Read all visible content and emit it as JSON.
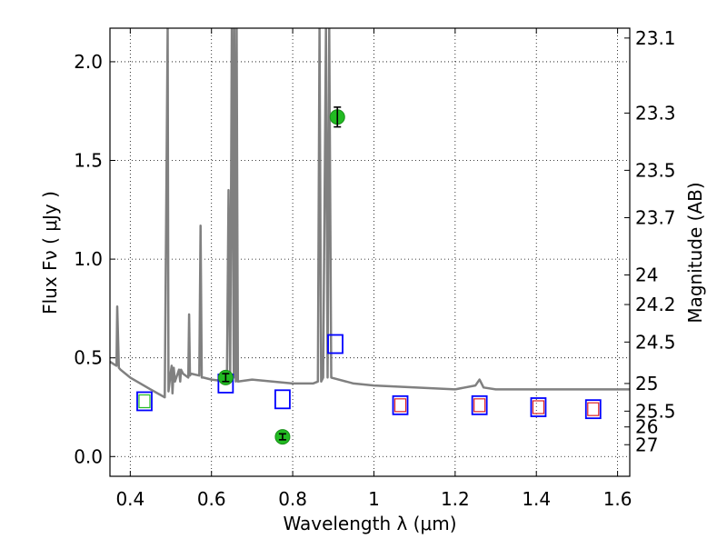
{
  "chart_data": {
    "type": "scatter",
    "title": "",
    "xlabel": "Wavelength  λ (μm)",
    "ylabel": "Flux  Fν  ( μJy )",
    "y2label": "Magnitude (AB)",
    "xlim": [
      0.35,
      1.63
    ],
    "ylim": [
      -0.1,
      2.17
    ],
    "grid": true,
    "grid_style": "dotted",
    "x_ticks": [
      0.4,
      0.6,
      0.8,
      1.0,
      1.2,
      1.4,
      1.6
    ],
    "x_tick_labels": [
      "0.4",
      "0.6",
      "0.8",
      "1",
      "1.2",
      "1.4",
      "1.6"
    ],
    "y_ticks": [
      0.0,
      0.5,
      1.0,
      1.5,
      2.0
    ],
    "y_tick_labels": [
      "0.0",
      "0.5",
      "1.0",
      "1.5",
      "2.0"
    ],
    "y2_ticks": [
      {
        "label": "23.1",
        "flux": 2.12
      },
      {
        "label": "23.3",
        "flux": 1.74
      },
      {
        "label": "23.5",
        "flux": 1.45
      },
      {
        "label": "23.7",
        "flux": 1.21
      },
      {
        "label": "24",
        "flux": 0.92
      },
      {
        "label": "24.2",
        "flux": 0.77
      },
      {
        "label": "24.5",
        "flux": 0.58
      },
      {
        "label": "25",
        "flux": 0.37
      },
      {
        "label": "25.5",
        "flux": 0.23
      },
      {
        "label": "26",
        "flux": 0.15
      },
      {
        "label": "27",
        "flux": 0.06
      }
    ],
    "series": [
      {
        "kind": "model_spectrum",
        "color": "#808080",
        "x": [
          0.35,
          0.366,
          0.368,
          0.372,
          0.376,
          0.4,
          0.45,
          0.485,
          0.492,
          0.494,
          0.5,
          0.502,
          0.504,
          0.507,
          0.51,
          0.52,
          0.523,
          0.525,
          0.53,
          0.543,
          0.545,
          0.547,
          0.55,
          0.57,
          0.573,
          0.576,
          0.58,
          0.6,
          0.638,
          0.642,
          0.646,
          0.65,
          0.655,
          0.656,
          0.66,
          0.662,
          0.665,
          0.7,
          0.8,
          0.85,
          0.862,
          0.866,
          0.87,
          0.875,
          0.882,
          0.886,
          0.89,
          0.895,
          0.95,
          1.0,
          1.1,
          1.2,
          1.25,
          1.26,
          1.27,
          1.3,
          1.4,
          1.5,
          1.55,
          1.6,
          1.63
        ],
        "y": [
          0.48,
          0.46,
          0.76,
          0.45,
          0.44,
          0.4,
          0.34,
          0.3,
          2.17,
          0.33,
          0.43,
          0.46,
          0.32,
          0.45,
          0.38,
          0.44,
          0.38,
          0.44,
          0.42,
          0.4,
          0.72,
          0.41,
          0.42,
          0.41,
          1.17,
          0.4,
          0.4,
          0.39,
          0.38,
          1.35,
          0.38,
          2.17,
          0.4,
          2.17,
          0.38,
          2.17,
          0.38,
          0.39,
          0.37,
          0.37,
          0.38,
          2.17,
          0.38,
          0.4,
          2.17,
          0.4,
          2.17,
          0.4,
          0.37,
          0.36,
          0.35,
          0.34,
          0.36,
          0.39,
          0.35,
          0.34,
          0.34,
          0.34,
          0.34,
          0.34,
          0.34
        ]
      },
      {
        "kind": "observed_photometry",
        "marker": "circle",
        "color": "#22bb22",
        "x": [
          0.635,
          0.775,
          0.91
        ],
        "y": [
          0.4,
          0.1,
          1.72
        ],
        "yerr": [
          0.02,
          0.015,
          0.05
        ]
      },
      {
        "kind": "model_photometry",
        "marker": "square",
        "color": "#0000ff",
        "x": [
          0.435,
          0.635,
          0.775,
          0.905,
          1.065,
          1.26,
          1.405,
          1.54
        ],
        "y": [
          0.28,
          0.37,
          0.29,
          0.57,
          0.26,
          0.26,
          0.25,
          0.24
        ]
      },
      {
        "kind": "inner_markers",
        "marker": "square",
        "x": [
          0.435,
          1.065,
          1.26,
          1.405,
          1.54
        ],
        "y": [
          0.28,
          0.26,
          0.26,
          0.25,
          0.24
        ],
        "colors": [
          "#22bb22",
          "#dd2222",
          "#dd2222",
          "#dd2222",
          "#dd2222"
        ]
      }
    ]
  }
}
